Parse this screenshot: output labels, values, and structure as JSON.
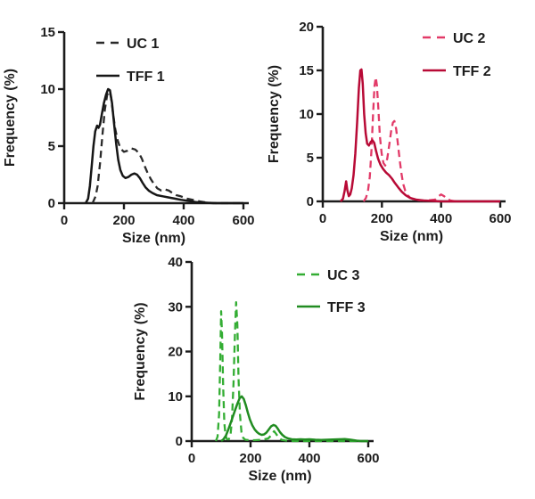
{
  "figure": {
    "background": "#ffffff",
    "text_color": "#1c1c1c"
  },
  "chart_data": [
    {
      "id": "size-distribution-1",
      "type": "line",
      "title": "",
      "xlabel": "Size (nm)",
      "ylabel": "Frequency (%)",
      "xlim": [
        0,
        600
      ],
      "ylim": [
        0,
        15
      ],
      "xticks": [
        0,
        200,
        400,
        600
      ],
      "yticks": [
        0,
        5,
        10,
        15
      ],
      "grid": false,
      "legend_position": "inside-top-right",
      "axis_color": "#1c1c1c",
      "series": [
        {
          "name": "UC 1",
          "line_style": "dashed",
          "color": "#2a2a2a",
          "points": [
            [
              95,
              0
            ],
            [
              105,
              0.6
            ],
            [
              112,
              1.5
            ],
            [
              120,
              3.5
            ],
            [
              128,
              6
            ],
            [
              136,
              8.2
            ],
            [
              144,
              9.5
            ],
            [
              150,
              9.8
            ],
            [
              156,
              9.4
            ],
            [
              163,
              8
            ],
            [
              170,
              6.6
            ],
            [
              178,
              5.6
            ],
            [
              188,
              4.8
            ],
            [
              200,
              4.5
            ],
            [
              212,
              4.6
            ],
            [
              225,
              4.8
            ],
            [
              238,
              4.7
            ],
            [
              250,
              4.4
            ],
            [
              260,
              3.9
            ],
            [
              270,
              3.2
            ],
            [
              280,
              2.6
            ],
            [
              290,
              2.1
            ],
            [
              300,
              1.7
            ],
            [
              312,
              1.3
            ],
            [
              325,
              1.1
            ],
            [
              338,
              1.2
            ],
            [
              350,
              1.1
            ],
            [
              362,
              0.9
            ],
            [
              375,
              0.7
            ],
            [
              390,
              0.6
            ],
            [
              410,
              0.4
            ],
            [
              430,
              0.3
            ],
            [
              455,
              0.15
            ],
            [
              480,
              0.05
            ],
            [
              510,
              0
            ],
            [
              600,
              0
            ]
          ]
        },
        {
          "name": "TFF 1",
          "line_style": "solid",
          "color": "#161616",
          "points": [
            [
              72,
              0
            ],
            [
              80,
              0.4
            ],
            [
              86,
              1.5
            ],
            [
              92,
              3.2
            ],
            [
              98,
              5
            ],
            [
              104,
              6.3
            ],
            [
              110,
              6.8
            ],
            [
              115,
              6.6
            ],
            [
              120,
              6.9
            ],
            [
              126,
              7.8
            ],
            [
              133,
              8.8
            ],
            [
              140,
              9.5
            ],
            [
              147,
              10
            ],
            [
              153,
              9.9
            ],
            [
              160,
              8.8
            ],
            [
              167,
              7
            ],
            [
              174,
              5.2
            ],
            [
              181,
              3.8
            ],
            [
              188,
              2.9
            ],
            [
              196,
              2.4
            ],
            [
              205,
              2.2
            ],
            [
              215,
              2.3
            ],
            [
              225,
              2.5
            ],
            [
              235,
              2.6
            ],
            [
              244,
              2.5
            ],
            [
              253,
              2.2
            ],
            [
              262,
              1.8
            ],
            [
              272,
              1.4
            ],
            [
              283,
              1.1
            ],
            [
              295,
              0.9
            ],
            [
              310,
              0.7
            ],
            [
              330,
              0.6
            ],
            [
              350,
              0.5
            ],
            [
              370,
              0.4
            ],
            [
              390,
              0.3
            ],
            [
              415,
              0.2
            ],
            [
              440,
              0.1
            ],
            [
              470,
              0.05
            ],
            [
              500,
              0
            ],
            [
              600,
              0
            ]
          ]
        }
      ]
    },
    {
      "id": "size-distribution-2",
      "type": "line",
      "title": "",
      "xlabel": "Size (nm)",
      "ylabel": "Frequency (%)",
      "xlim": [
        0,
        600
      ],
      "ylim": [
        0,
        20
      ],
      "xticks": [
        0,
        200,
        400,
        600
      ],
      "yticks": [
        0,
        5,
        10,
        15,
        20
      ],
      "grid": false,
      "legend_position": "inside-top-right",
      "axis_color": "#1c1c1c",
      "series": [
        {
          "name": "UC 2",
          "line_style": "dashed",
          "color": "#e23a68",
          "points": [
            [
              138,
              0
            ],
            [
              146,
              0.4
            ],
            [
              153,
              1.2
            ],
            [
              159,
              2.8
            ],
            [
              165,
              6
            ],
            [
              170,
              10
            ],
            [
              175,
              13.2
            ],
            [
              179,
              14.2
            ],
            [
              183,
              13.3
            ],
            [
              188,
              10.5
            ],
            [
              193,
              7.5
            ],
            [
              199,
              5.5
            ],
            [
              205,
              4.4
            ],
            [
              211,
              4.1
            ],
            [
              218,
              4.9
            ],
            [
              225,
              6.5
            ],
            [
              231,
              8
            ],
            [
              237,
              9
            ],
            [
              242,
              9.2
            ],
            [
              248,
              8.3
            ],
            [
              254,
              6.6
            ],
            [
              260,
              4.8
            ],
            [
              266,
              3.2
            ],
            [
              272,
              2
            ],
            [
              279,
              1.2
            ],
            [
              287,
              0.7
            ],
            [
              296,
              0.4
            ],
            [
              310,
              0.2
            ],
            [
              330,
              0.1
            ],
            [
              355,
              0.1
            ],
            [
              380,
              0.2
            ],
            [
              392,
              0.6
            ],
            [
              400,
              0.8
            ],
            [
              410,
              0.6
            ],
            [
              420,
              0.3
            ],
            [
              432,
              0.1
            ],
            [
              450,
              0
            ],
            [
              600,
              0
            ]
          ]
        },
        {
          "name": "TFF 2",
          "line_style": "solid",
          "color": "#b80a36",
          "points": [
            [
              60,
              0
            ],
            [
              68,
              0.3
            ],
            [
              74,
              1.2
            ],
            [
              79,
              2.3
            ],
            [
              83,
              1.3
            ],
            [
              88,
              0.6
            ],
            [
              93,
              0.8
            ],
            [
              98,
              1.5
            ],
            [
              104,
              3
            ],
            [
              110,
              5.5
            ],
            [
              116,
              9
            ],
            [
              122,
              13
            ],
            [
              127,
              15
            ],
            [
              131,
              15.1
            ],
            [
              135,
              13.5
            ],
            [
              140,
              10
            ],
            [
              145,
              7.8
            ],
            [
              150,
              6.6
            ],
            [
              156,
              6.4
            ],
            [
              162,
              6.8
            ],
            [
              168,
              7
            ],
            [
              174,
              6.7
            ],
            [
              180,
              5.8
            ],
            [
              187,
              4.9
            ],
            [
              195,
              4.2
            ],
            [
              204,
              3.7
            ],
            [
              214,
              3.3
            ],
            [
              224,
              3
            ],
            [
              234,
              2.6
            ],
            [
              244,
              2.1
            ],
            [
              255,
              1.6
            ],
            [
              267,
              1.1
            ],
            [
              280,
              0.7
            ],
            [
              295,
              0.4
            ],
            [
              315,
              0.2
            ],
            [
              340,
              0.1
            ],
            [
              370,
              0.05
            ],
            [
              400,
              0
            ],
            [
              600,
              0
            ]
          ]
        }
      ]
    },
    {
      "id": "size-distribution-3",
      "type": "line",
      "title": "",
      "xlabel": "Size (nm)",
      "ylabel": "Frequency (%)",
      "xlim": [
        0,
        600
      ],
      "ylim": [
        0,
        40
      ],
      "xticks": [
        0,
        200,
        400,
        600
      ],
      "yticks": [
        0,
        10,
        20,
        30,
        40
      ],
      "grid": false,
      "legend_position": "inside-top-right",
      "axis_color": "#1c1c1c",
      "series": [
        {
          "name": "UC 3",
          "line_style": "dashed",
          "color": "#33ad33",
          "points": [
            [
              82,
              0
            ],
            [
              88,
              1
            ],
            [
              93,
              6
            ],
            [
              97,
              18
            ],
            [
              100,
              29
            ],
            [
              103,
              24
            ],
            [
              107,
              12
            ],
            [
              111,
              4
            ],
            [
              115,
              1.2
            ],
            [
              120,
              0.4
            ],
            [
              126,
              0.4
            ],
            [
              132,
              1.5
            ],
            [
              137,
              5
            ],
            [
              142,
              13
            ],
            [
              147,
              24
            ],
            [
              151,
              31
            ],
            [
              155,
              26
            ],
            [
              159,
              14
            ],
            [
              164,
              6
            ],
            [
              169,
              2
            ],
            [
              175,
              0.7
            ],
            [
              182,
              0.3
            ],
            [
              195,
              0.2
            ],
            [
              215,
              0.2
            ],
            [
              240,
              0.3
            ],
            [
              260,
              0.6
            ],
            [
              272,
              1.4
            ],
            [
              280,
              2.2
            ],
            [
              287,
              1.6
            ],
            [
              295,
              0.8
            ],
            [
              305,
              0.3
            ],
            [
              320,
              0.1
            ],
            [
              345,
              0
            ],
            [
              600,
              0
            ]
          ]
        },
        {
          "name": "TFF 3",
          "line_style": "solid",
          "color": "#218c21",
          "points": [
            [
              100,
              0
            ],
            [
              108,
              0.4
            ],
            [
              116,
              1.2
            ],
            [
              124,
              2.5
            ],
            [
              132,
              4
            ],
            [
              140,
              5.5
            ],
            [
              148,
              7
            ],
            [
              156,
              8.5
            ],
            [
              163,
              9.6
            ],
            [
              170,
              10
            ],
            [
              177,
              9.4
            ],
            [
              184,
              8
            ],
            [
              191,
              6.3
            ],
            [
              198,
              4.8
            ],
            [
              206,
              3.5
            ],
            [
              214,
              2.6
            ],
            [
              222,
              2
            ],
            [
              230,
              1.6
            ],
            [
              238,
              1.4
            ],
            [
              246,
              1.5
            ],
            [
              254,
              1.9
            ],
            [
              262,
              2.6
            ],
            [
              270,
              3.3
            ],
            [
              278,
              3.6
            ],
            [
              285,
              3.4
            ],
            [
              292,
              2.8
            ],
            [
              300,
              2
            ],
            [
              308,
              1.4
            ],
            [
              317,
              0.9
            ],
            [
              327,
              0.6
            ],
            [
              340,
              0.4
            ],
            [
              355,
              0.35
            ],
            [
              370,
              0.4
            ],
            [
              385,
              0.35
            ],
            [
              400,
              0.4
            ],
            [
              420,
              0.3
            ],
            [
              440,
              0.25
            ],
            [
              460,
              0.3
            ],
            [
              480,
              0.35
            ],
            [
              500,
              0.4
            ],
            [
              520,
              0.45
            ],
            [
              540,
              0.3
            ],
            [
              560,
              0.1
            ],
            [
              575,
              0
            ],
            [
              600,
              0
            ]
          ]
        }
      ]
    }
  ]
}
